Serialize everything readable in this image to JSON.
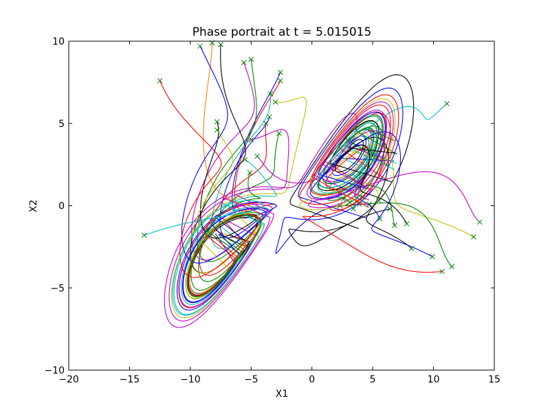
{
  "chart_data": {
    "type": "line",
    "title": "Phase portrait at t = 5.015015",
    "xlabel": "X1",
    "ylabel": "X2",
    "xlim": [
      -20,
      15
    ],
    "ylim": [
      -10,
      10
    ],
    "xticks": [
      -20,
      -15,
      -10,
      -5,
      0,
      5,
      10,
      15
    ],
    "yticks": [
      -10,
      -5,
      0,
      5,
      10
    ],
    "xtick_labels": [
      "−20",
      "−15",
      "−10",
      "−5",
      "0",
      "5",
      "10",
      "15"
    ],
    "ytick_labels": [
      "−10",
      "−5",
      "0",
      "5",
      "10"
    ],
    "grid": false,
    "legend": "none",
    "marker": "x",
    "marker_color": "#008000",
    "colors": [
      "#0000ff",
      "#008000",
      "#ff0000",
      "#00bfbf",
      "#bf00bf",
      "#bfbf00",
      "#000000",
      "#ff8000"
    ],
    "series": [
      {
        "color": "#0000ff",
        "start": [
          -2.6,
          8.1
        ],
        "end": [
          -9.6,
          0.0
        ]
      },
      {
        "color": "#ff0000",
        "start": [
          -2.6,
          7.6
        ],
        "end": [
          -9.0,
          0.4
        ]
      },
      {
        "color": "#00bfbf",
        "start": [
          -3.4,
          6.8
        ],
        "end": [
          -10.2,
          0.2
        ]
      },
      {
        "color": "#008000",
        "start": [
          -5.0,
          8.9
        ],
        "end": [
          -10.6,
          -0.2
        ]
      },
      {
        "color": "#bf00bf",
        "start": [
          -5.6,
          8.7
        ],
        "end": [
          -11.2,
          0.6
        ]
      },
      {
        "color": "#000000",
        "start": [
          -7.5,
          9.8
        ],
        "end": [
          -9.8,
          -1.1
        ]
      },
      {
        "color": "#ff8000",
        "start": [
          -8.2,
          9.9
        ],
        "end": [
          -12.0,
          -0.5
        ]
      },
      {
        "color": "#bfbf00",
        "start": [
          -3.0,
          6.3
        ],
        "end": [
          -8.8,
          1.3
        ]
      },
      {
        "color": "#0000ff",
        "start": [
          -3.5,
          5.4
        ],
        "end": [
          -11.0,
          1.0
        ]
      },
      {
        "color": "#ff0000",
        "start": [
          -3.8,
          5.0
        ],
        "end": [
          -10.0,
          -0.8
        ]
      },
      {
        "color": "#008000",
        "start": [
          -2.7,
          4.4
        ],
        "end": [
          -12.3,
          0.2
        ]
      },
      {
        "color": "#bf00bf",
        "start": [
          -4.5,
          3.0
        ],
        "end": [
          -9.3,
          1.8
        ]
      },
      {
        "color": "#00bfbf",
        "start": [
          -5.5,
          2.8
        ],
        "end": [
          -10.9,
          1.4
        ]
      },
      {
        "color": "#000000",
        "start": [
          -7.8,
          5.1
        ],
        "end": [
          -8.3,
          -1.5
        ]
      },
      {
        "color": "#bfbf00",
        "start": [
          -7.8,
          4.6
        ],
        "end": [
          -11.5,
          -0.6
        ]
      },
      {
        "color": "#0000ff",
        "start": [
          -9.2,
          9.7
        ],
        "end": [
          -10.4,
          0.5
        ]
      },
      {
        "color": "#ff0000",
        "start": [
          -12.5,
          7.6
        ],
        "end": [
          -11.8,
          -0.1
        ]
      },
      {
        "color": "#008000",
        "start": [
          -5.1,
          2.0
        ],
        "end": [
          -9.6,
          -0.9
        ]
      },
      {
        "color": "#00bfbf",
        "start": [
          -13.8,
          -1.8
        ],
        "end": [
          -9.9,
          1.2
        ]
      },
      {
        "color": "#bf00bf",
        "start": [
          -5.0,
          4.0
        ],
        "end": [
          -11.3,
          1.7
        ]
      },
      {
        "color": "#0000ff",
        "start": [
          2.3,
          0.0
        ],
        "end": [
          10.0,
          -2.0
        ]
      },
      {
        "color": "#008000",
        "start": [
          3.1,
          0.2
        ],
        "end": [
          9.7,
          0.9
        ]
      },
      {
        "color": "#ff0000",
        "start": [
          3.9,
          0.1
        ],
        "end": [
          8.9,
          -0.8
        ]
      },
      {
        "color": "#00bfbf",
        "start": [
          3.4,
          -0.2
        ],
        "end": [
          10.9,
          1.3
        ]
      },
      {
        "color": "#bf00bf",
        "start": [
          4.2,
          0.5
        ],
        "end": [
          9.0,
          2.2
        ]
      },
      {
        "color": "#bfbf00",
        "start": [
          5.5,
          0.3
        ],
        "end": [
          10.6,
          -1.6
        ]
      },
      {
        "color": "#000000",
        "start": [
          6.4,
          -0.2
        ],
        "end": [
          9.3,
          -2.8
        ]
      },
      {
        "color": "#0000ff",
        "start": [
          5.6,
          -0.8
        ],
        "end": [
          11.2,
          2.6
        ]
      },
      {
        "color": "#008000",
        "start": [
          6.8,
          -1.2
        ],
        "end": [
          9.5,
          3.2
        ]
      },
      {
        "color": "#ff0000",
        "start": [
          4.8,
          3.3
        ],
        "end": [
          10.3,
          -0.4
        ]
      },
      {
        "color": "#00bfbf",
        "start": [
          11.1,
          6.2
        ],
        "end": [
          8.2,
          1.0
        ]
      },
      {
        "color": "#bf00bf",
        "start": [
          13.8,
          -1.0
        ],
        "end": [
          9.2,
          -1.1
        ]
      },
      {
        "color": "#bfbf00",
        "start": [
          13.3,
          -1.9
        ],
        "end": [
          10.1,
          2.1
        ]
      },
      {
        "color": "#000000",
        "start": [
          8.2,
          -2.6
        ],
        "end": [
          11.6,
          0.4
        ]
      },
      {
        "color": "#0000ff",
        "start": [
          9.9,
          -3.1
        ],
        "end": [
          8.6,
          0.2
        ]
      },
      {
        "color": "#008000",
        "start": [
          11.5,
          -3.7
        ],
        "end": [
          10.4,
          1.8
        ]
      },
      {
        "color": "#ff0000",
        "start": [
          10.7,
          -4.0
        ],
        "end": [
          9.4,
          -1.9
        ]
      },
      {
        "color": "#00bfbf",
        "start": [
          2.6,
          0.4
        ],
        "end": [
          11.0,
          0.8
        ]
      },
      {
        "color": "#bf00bf",
        "start": [
          4.7,
          0.1
        ],
        "end": [
          8.4,
          -0.3
        ]
      },
      {
        "color": "#000000",
        "start": [
          7.8,
          -1.1
        ],
        "end": [
          10.8,
          2.9
        ]
      }
    ]
  }
}
